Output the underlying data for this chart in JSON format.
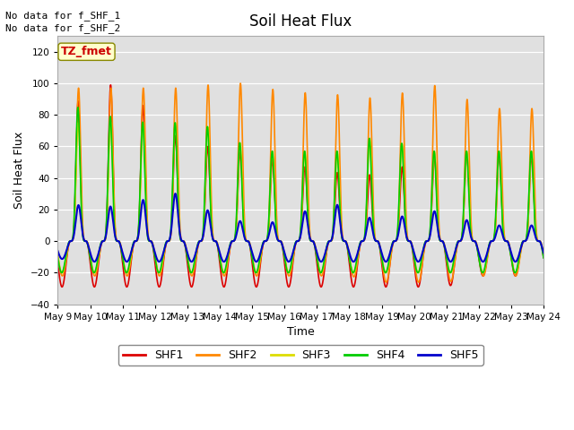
{
  "title": "Soil Heat Flux",
  "xlabel": "Time",
  "ylabel": "Soil Heat Flux",
  "ylim": [
    -40,
    130
  ],
  "yticks": [
    -40,
    -20,
    0,
    20,
    40,
    60,
    80,
    100,
    120
  ],
  "background_color": "#e0e0e0",
  "fig_background": "#ffffff",
  "note_line1": "No data for f_SHF_1",
  "note_line2": "No data for f_SHF_2",
  "tz_label": "TZ_fmet",
  "tz_bg": "#ffffcc",
  "tz_border": "#888800",
  "tz_text_color": "#cc0000",
  "series_names": [
    "SHF1",
    "SHF2",
    "SHF3",
    "SHF4",
    "SHF5"
  ],
  "series_colors": [
    "#dd0000",
    "#ff8800",
    "#dddd00",
    "#00cc00",
    "#0000cc"
  ],
  "series_lw": [
    1.2,
    1.2,
    1.2,
    1.2,
    1.5
  ],
  "legend_items": [
    "SHF1",
    "SHF2",
    "SHF3",
    "SHF4",
    "SHF5"
  ],
  "legend_colors": [
    "#dd0000",
    "#ff8800",
    "#dddd00",
    "#00cc00",
    "#0000cc"
  ]
}
